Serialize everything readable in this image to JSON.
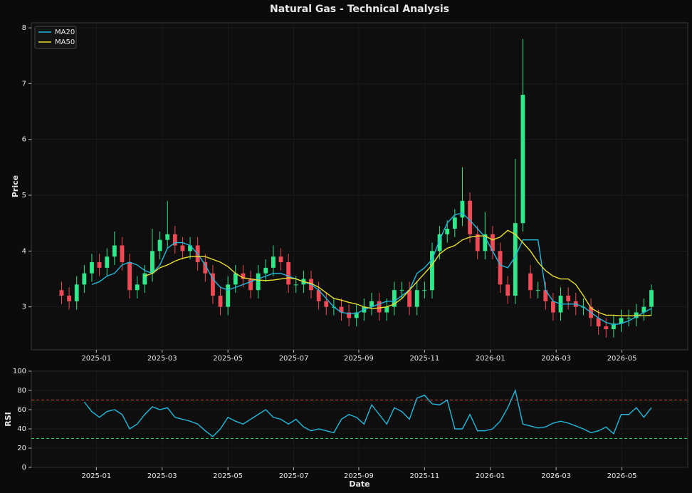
{
  "chart_data": [
    {
      "type": "candlestick",
      "title": "Natural Gas - Technical Analysis",
      "y_label": "Price",
      "x": [
        0,
        1,
        2,
        3,
        4,
        5,
        6,
        7,
        8,
        9,
        10,
        11,
        12,
        13,
        14,
        15,
        16,
        17,
        18,
        19,
        20,
        21,
        22,
        23,
        24,
        25,
        26,
        27,
        28,
        29,
        30,
        31,
        32,
        33,
        34,
        35,
        36,
        37,
        38,
        39,
        40,
        41,
        42,
        43,
        44,
        45,
        46,
        47,
        48,
        49,
        50,
        51,
        52,
        53,
        54,
        55,
        56,
        57,
        58,
        59,
        60,
        61,
        62,
        63,
        64,
        65,
        66,
        67,
        68,
        69,
        70,
        71,
        72,
        73,
        74,
        75,
        76,
        77,
        78
      ],
      "open": [
        3.3,
        3.2,
        3.1,
        3.4,
        3.6,
        3.8,
        3.7,
        3.9,
        4.1,
        3.8,
        3.3,
        3.4,
        3.6,
        4.0,
        4.2,
        4.3,
        4.1,
        4.0,
        4.1,
        3.8,
        3.6,
        3.2,
        3.0,
        3.4,
        3.6,
        3.5,
        3.3,
        3.6,
        3.7,
        3.9,
        3.8,
        3.4,
        3.4,
        3.5,
        3.3,
        3.1,
        3.0,
        3.0,
        2.9,
        2.8,
        2.9,
        3.0,
        3.1,
        2.9,
        3.0,
        3.3,
        3.3,
        3.0,
        3.3,
        3.3,
        4.0,
        4.3,
        4.4,
        4.6,
        4.9,
        4.3,
        4.0,
        4.3,
        4.0,
        3.4,
        3.2,
        4.5,
        3.6,
        3.3,
        3.3,
        3.1,
        2.9,
        3.2,
        3.1,
        3.0,
        3.0,
        2.8,
        2.65,
        2.6,
        2.7,
        2.8,
        2.8,
        2.9,
        3.0
      ],
      "high": [
        3.45,
        3.35,
        3.55,
        3.75,
        3.95,
        3.95,
        4.05,
        4.35,
        4.25,
        3.95,
        3.55,
        3.75,
        4.4,
        4.35,
        4.9,
        4.45,
        4.25,
        4.25,
        4.25,
        3.95,
        3.75,
        3.35,
        3.55,
        3.75,
        3.75,
        3.65,
        3.75,
        3.85,
        4.1,
        4.05,
        3.95,
        3.55,
        3.65,
        3.65,
        3.45,
        3.25,
        3.15,
        3.15,
        3.05,
        3.05,
        3.15,
        3.25,
        3.25,
        3.15,
        3.45,
        3.45,
        3.45,
        3.45,
        3.45,
        4.15,
        4.45,
        4.55,
        4.75,
        5.5,
        5.05,
        4.45,
        4.7,
        4.45,
        4.15,
        3.55,
        5.65,
        7.8,
        3.75,
        3.45,
        3.45,
        3.25,
        3.35,
        3.35,
        3.25,
        3.15,
        3.15,
        2.95,
        2.8,
        2.85,
        2.95,
        2.95,
        3.05,
        3.15,
        3.4
      ],
      "low": [
        3.05,
        2.95,
        2.95,
        3.25,
        3.45,
        3.55,
        3.55,
        3.75,
        3.65,
        3.15,
        3.15,
        3.25,
        3.45,
        3.85,
        4.05,
        3.95,
        3.85,
        3.85,
        3.65,
        3.45,
        3.05,
        2.85,
        2.85,
        3.25,
        3.35,
        3.15,
        3.15,
        3.45,
        3.55,
        3.65,
        3.25,
        3.25,
        3.25,
        3.15,
        2.95,
        2.85,
        2.85,
        2.75,
        2.65,
        2.65,
        2.75,
        2.85,
        2.75,
        2.75,
        2.85,
        3.15,
        2.85,
        2.85,
        3.15,
        3.15,
        3.85,
        4.15,
        4.25,
        4.45,
        4.15,
        3.85,
        3.85,
        3.85,
        3.25,
        3.05,
        3.05,
        4.35,
        3.15,
        3.15,
        2.95,
        2.75,
        2.75,
        2.95,
        2.85,
        2.85,
        2.65,
        2.5,
        2.45,
        2.45,
        2.55,
        2.65,
        2.65,
        2.75,
        2.85
      ],
      "close": [
        3.2,
        3.1,
        3.4,
        3.6,
        3.8,
        3.7,
        3.9,
        4.1,
        3.8,
        3.3,
        3.4,
        3.6,
        4.0,
        4.2,
        4.3,
        4.1,
        4.0,
        4.1,
        3.8,
        3.6,
        3.2,
        3.0,
        3.4,
        3.6,
        3.5,
        3.3,
        3.6,
        3.7,
        3.9,
        3.8,
        3.4,
        3.4,
        3.5,
        3.3,
        3.1,
        3.0,
        3.0,
        2.9,
        2.8,
        2.9,
        3.0,
        3.1,
        2.9,
        3.0,
        3.3,
        3.3,
        3.0,
        3.3,
        3.3,
        4.0,
        4.3,
        4.4,
        4.6,
        4.9,
        4.3,
        4.0,
        4.3,
        4.0,
        3.4,
        3.2,
        4.5,
        6.8,
        3.3,
        3.3,
        3.1,
        2.9,
        3.2,
        3.1,
        3.0,
        3.0,
        2.8,
        2.65,
        2.6,
        2.7,
        2.8,
        2.8,
        2.9,
        3.0,
        3.3
      ],
      "up_color": "#2ee88a",
      "down_color": "#ef4a55",
      "series": [
        {
          "name": "MA20",
          "color": "#22b8dc",
          "values": [
            null,
            null,
            null,
            null,
            3.4,
            3.45,
            3.55,
            3.6,
            3.75,
            3.8,
            3.75,
            3.65,
            3.6,
            3.75,
            4.05,
            4.15,
            4.15,
            4.1,
            3.95,
            3.75,
            3.5,
            3.35,
            3.3,
            3.35,
            3.4,
            3.45,
            3.5,
            3.55,
            3.6,
            3.6,
            3.55,
            3.5,
            3.45,
            3.4,
            3.3,
            3.15,
            3.0,
            2.9,
            2.88,
            2.88,
            2.95,
            3.0,
            3.05,
            3.1,
            3.1,
            3.2,
            3.3,
            3.6,
            3.7,
            3.85,
            4.2,
            4.5,
            4.65,
            4.68,
            4.55,
            4.4,
            4.25,
            4.0,
            3.75,
            3.7,
            3.9,
            4.2,
            4.2,
            4.2,
            3.3,
            3.1,
            3.05,
            3.05,
            3.05,
            3.0,
            2.9,
            2.8,
            2.72,
            2.68,
            2.7,
            2.75,
            2.82,
            2.9,
            2.97
          ]
        },
        {
          "name": "MA50",
          "color": "#e8e030",
          "values": [
            null,
            null,
            null,
            null,
            null,
            null,
            null,
            null,
            null,
            null,
            null,
            3.55,
            3.6,
            3.7,
            3.75,
            3.82,
            3.87,
            3.9,
            3.9,
            3.9,
            3.85,
            3.8,
            3.72,
            3.6,
            3.52,
            3.5,
            3.48,
            3.47,
            3.48,
            3.5,
            3.52,
            3.5,
            3.45,
            3.42,
            3.35,
            3.25,
            3.15,
            3.12,
            3.08,
            3.05,
            3.0,
            2.97,
            2.98,
            3.0,
            3.05,
            3.15,
            3.3,
            3.45,
            3.6,
            3.75,
            3.95,
            4.05,
            4.1,
            4.2,
            4.25,
            4.27,
            4.27,
            4.2,
            4.25,
            4.37,
            4.3,
            4.15,
            4.0,
            3.8,
            3.65,
            3.55,
            3.5,
            3.5,
            3.4,
            3.2,
            2.98,
            2.9,
            2.85,
            2.85,
            2.84,
            2.84,
            2.84,
            2.84,
            2.85
          ]
        }
      ],
      "xlim": [
        -4.0,
        82.8
      ],
      "xticks": [
        {
          "value": 4.6,
          "label": "2025-01"
        },
        {
          "value": 13.3,
          "label": "2025-03"
        },
        {
          "value": 22.0,
          "label": "2025-05"
        },
        {
          "value": 30.7,
          "label": "2025-07"
        },
        {
          "value": 39.3,
          "label": "2025-09"
        },
        {
          "value": 48.0,
          "label": "2025-11"
        },
        {
          "value": 56.7,
          "label": "2026-01"
        },
        {
          "value": 65.4,
          "label": "2026-03"
        },
        {
          "value": 74.1,
          "label": "2026-05"
        }
      ],
      "ylim": [
        2.23,
        8.09
      ],
      "yticks": [
        3,
        4,
        5,
        6,
        7,
        8
      ],
      "grid": true,
      "legend": "upper-left"
    },
    {
      "type": "line",
      "x_label": "Date",
      "y_label": "RSI",
      "x": [
        0,
        1,
        2,
        3,
        4,
        5,
        6,
        7,
        8,
        9,
        10,
        11,
        12,
        13,
        14,
        15,
        16,
        17,
        18,
        19,
        20,
        21,
        22,
        23,
        24,
        25,
        26,
        27,
        28,
        29,
        30,
        31,
        32,
        33,
        34,
        35,
        36,
        37,
        38,
        39,
        40,
        41,
        42,
        43,
        44,
        45,
        46,
        47,
        48,
        49,
        50,
        51,
        52,
        53,
        54,
        55,
        56,
        57,
        58,
        59,
        60,
        61,
        62,
        63,
        64,
        65,
        66,
        67,
        68,
        69,
        70,
        71,
        72,
        73,
        74,
        75,
        76,
        77,
        78
      ],
      "series": [
        {
          "color": "#22b8dc",
          "values": [
            null,
            null,
            null,
            68,
            58,
            52,
            58,
            60,
            55,
            40,
            45,
            55,
            63,
            60,
            62,
            52,
            50,
            48,
            45,
            38,
            32,
            40,
            52,
            48,
            45,
            50,
            55,
            60,
            52,
            50,
            45,
            50,
            42,
            38,
            40,
            38,
            36,
            50,
            55,
            52,
            45,
            65,
            55,
            45,
            62,
            58,
            50,
            72,
            75,
            66,
            65,
            70,
            40,
            40,
            55,
            38,
            38,
            40,
            48,
            62,
            80,
            45,
            43,
            41,
            42,
            46,
            48,
            46,
            43,
            40,
            36,
            38,
            42,
            35,
            55,
            55,
            62,
            52,
            62
          ]
        }
      ],
      "ref_lines": [
        {
          "value": 70,
          "color": "#e74c3c"
        },
        {
          "value": 30,
          "color": "#2ecc71"
        }
      ],
      "xlim": [
        -4.0,
        82.8
      ],
      "xticks": [
        {
          "value": 4.6,
          "label": "2025-01"
        },
        {
          "value": 13.3,
          "label": "2025-03"
        },
        {
          "value": 22.0,
          "label": "2025-05"
        },
        {
          "value": 30.7,
          "label": "2025-07"
        },
        {
          "value": 39.3,
          "label": "2025-09"
        },
        {
          "value": 48.0,
          "label": "2025-11"
        },
        {
          "value": 56.7,
          "label": "2026-01"
        },
        {
          "value": 65.4,
          "label": "2026-03"
        },
        {
          "value": 74.1,
          "label": "2026-05"
        }
      ],
      "ylim": [
        0,
        100
      ],
      "yticks": [
        0,
        20,
        40,
        60,
        80,
        100
      ],
      "grid": true
    }
  ]
}
